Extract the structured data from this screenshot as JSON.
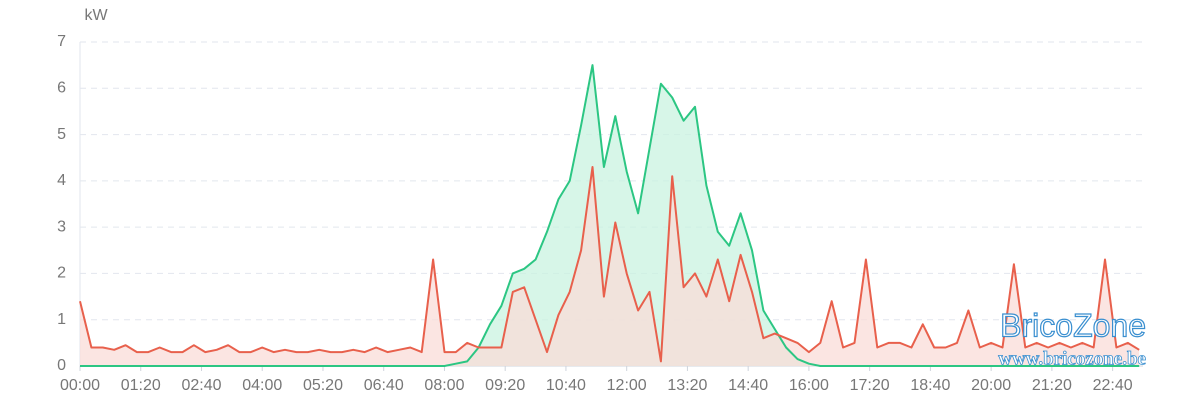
{
  "chart_data": {
    "type": "area-line",
    "y_label": "kW",
    "x": [
      "00:00",
      "00:15",
      "00:30",
      "00:45",
      "01:00",
      "01:15",
      "01:30",
      "01:45",
      "02:00",
      "02:15",
      "02:30",
      "02:45",
      "03:00",
      "03:15",
      "03:30",
      "03:45",
      "04:00",
      "04:15",
      "04:30",
      "04:45",
      "05:00",
      "05:15",
      "05:30",
      "05:45",
      "06:00",
      "06:15",
      "06:30",
      "06:45",
      "07:00",
      "07:15",
      "07:30",
      "07:45",
      "08:00",
      "08:15",
      "08:30",
      "08:45",
      "09:00",
      "09:15",
      "09:30",
      "09:45",
      "10:00",
      "10:15",
      "10:30",
      "10:45",
      "11:00",
      "11:15",
      "11:30",
      "11:45",
      "12:00",
      "12:15",
      "12:30",
      "12:45",
      "13:00",
      "13:15",
      "13:30",
      "13:45",
      "14:00",
      "14:15",
      "14:30",
      "14:45",
      "15:00",
      "15:15",
      "15:30",
      "15:45",
      "16:00",
      "16:15",
      "16:30",
      "16:45",
      "17:00",
      "17:15",
      "17:30",
      "17:45",
      "18:00",
      "18:15",
      "18:30",
      "18:45",
      "19:00",
      "19:15",
      "19:30",
      "19:45",
      "20:00",
      "20:15",
      "20:30",
      "20:45",
      "21:00",
      "21:15",
      "21:30",
      "21:45",
      "22:00",
      "22:15",
      "22:30",
      "22:45",
      "23:00",
      "23:15"
    ],
    "series": [
      {
        "color": "#2cc683",
        "fill": "#c9f3e0",
        "values": [
          0,
          0,
          0,
          0,
          0,
          0,
          0,
          0,
          0,
          0,
          0,
          0,
          0,
          0,
          0,
          0,
          0,
          0,
          0,
          0,
          0,
          0,
          0,
          0,
          0,
          0,
          0,
          0,
          0,
          0,
          0,
          0,
          0,
          0.05,
          0.1,
          0.4,
          0.9,
          1.3,
          2.0,
          2.1,
          2.3,
          2.9,
          3.6,
          4.0,
          5.2,
          6.5,
          4.3,
          5.4,
          4.2,
          3.3,
          4.7,
          6.1,
          5.8,
          5.3,
          5.6,
          3.9,
          2.9,
          2.6,
          3.3,
          2.5,
          1.2,
          0.8,
          0.4,
          0.15,
          0.05,
          0,
          0,
          0,
          0,
          0,
          0,
          0,
          0,
          0,
          0,
          0,
          0,
          0,
          0,
          0,
          0,
          0,
          0,
          0,
          0,
          0,
          0,
          0,
          0,
          0,
          0,
          0,
          0,
          0
        ]
      },
      {
        "color": "#e8604c",
        "fill": "#f9dcd8",
        "values": [
          1.4,
          0.4,
          0.4,
          0.35,
          0.45,
          0.3,
          0.3,
          0.4,
          0.3,
          0.3,
          0.45,
          0.3,
          0.35,
          0.45,
          0.3,
          0.3,
          0.4,
          0.3,
          0.35,
          0.3,
          0.3,
          0.35,
          0.3,
          0.3,
          0.35,
          0.3,
          0.4,
          0.3,
          0.35,
          0.4,
          0.3,
          2.3,
          0.3,
          0.3,
          0.5,
          0.4,
          0.4,
          0.4,
          1.6,
          1.7,
          1.0,
          0.3,
          1.1,
          1.6,
          2.5,
          4.3,
          1.5,
          3.1,
          2.0,
          1.2,
          1.6,
          0.1,
          4.1,
          1.7,
          2.0,
          1.5,
          2.3,
          1.4,
          2.4,
          1.6,
          0.6,
          0.7,
          0.6,
          0.5,
          0.3,
          0.5,
          1.4,
          0.4,
          0.5,
          2.3,
          0.4,
          0.5,
          0.5,
          0.4,
          0.9,
          0.4,
          0.4,
          0.5,
          1.2,
          0.4,
          0.5,
          0.4,
          2.2,
          0.4,
          0.5,
          0.4,
          0.5,
          0.4,
          0.5,
          0.4,
          2.3,
          0.4,
          0.5,
          0.35
        ]
      }
    ],
    "xlim": [
      "00:00",
      "23:20"
    ],
    "xticks": [
      "00:00",
      "01:20",
      "02:40",
      "04:00",
      "05:20",
      "06:40",
      "08:00",
      "09:20",
      "10:40",
      "12:00",
      "13:20",
      "14:40",
      "16:00",
      "17:20",
      "18:40",
      "20:00",
      "21:20",
      "22:40"
    ],
    "ylim": [
      0,
      7
    ],
    "yticks": [
      0,
      1,
      2,
      3,
      4,
      5,
      6,
      7
    ],
    "grid": true,
    "watermark": {
      "title": "BricoZone",
      "url": "www.bricozone.be"
    }
  }
}
